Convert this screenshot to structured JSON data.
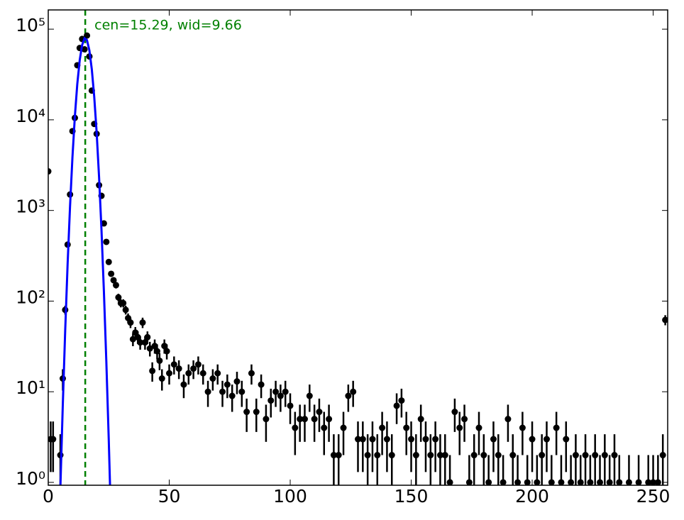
{
  "chart_data": {
    "type": "scatter",
    "log_y": true,
    "xlim": [
      0,
      256
    ],
    "ylim": [
      0.93,
      163000
    ],
    "xticks": [
      0,
      50,
      100,
      150,
      200,
      250
    ],
    "yticks": [
      {
        "value": 1,
        "label": "10⁰"
      },
      {
        "value": 10,
        "label": "10¹"
      },
      {
        "value": 100,
        "label": "10²"
      },
      {
        "value": 1000,
        "label": "10³"
      },
      {
        "value": 10000,
        "label": "10⁴"
      },
      {
        "value": 100000,
        "label": "10⁵"
      }
    ],
    "annotation": "cen=15.29, wid=9.66",
    "vline": 15.29,
    "vline_color": "#008000",
    "series": [
      {
        "color": "#000000",
        "x": [
          0,
          1,
          2,
          5,
          6,
          7,
          8,
          9,
          10,
          11,
          12,
          13,
          14,
          15,
          16,
          17,
          18,
          19,
          20,
          21,
          22,
          23,
          24,
          25,
          26,
          27,
          28,
          29,
          30,
          31,
          32,
          33,
          34,
          35,
          36,
          37,
          38,
          39,
          40,
          41,
          42,
          43,
          44,
          45,
          46,
          47,
          48,
          49,
          50,
          52,
          54,
          56,
          58,
          60,
          62,
          64,
          66,
          68,
          70,
          72,
          74,
          76,
          78,
          80,
          82,
          84,
          86,
          88,
          90,
          92,
          94,
          96,
          98,
          100,
          102,
          104,
          106,
          108,
          110,
          112,
          114,
          116,
          118,
          120,
          122,
          124,
          126,
          128,
          130,
          132,
          134,
          136,
          138,
          140,
          142,
          144,
          146,
          148,
          150,
          152,
          154,
          156,
          158,
          160,
          162,
          164,
          166,
          168,
          170,
          172,
          174,
          176,
          178,
          180,
          182,
          184,
          186,
          188,
          190,
          192,
          194,
          196,
          198,
          200,
          202,
          204,
          206,
          208,
          210,
          212,
          214,
          216,
          218,
          220,
          222,
          224,
          226,
          228,
          230,
          232,
          234,
          236,
          240,
          244,
          248,
          250,
          252,
          254,
          255
        ],
        "values": [
          2700,
          3,
          3,
          2,
          14,
          80,
          420,
          1500,
          7500,
          10500,
          40000,
          62000,
          78000,
          60000,
          85000,
          50000,
          21000,
          9000,
          7000,
          1900,
          1450,
          720,
          450,
          270,
          200,
          170,
          150,
          110,
          95,
          95,
          80,
          65,
          58,
          38,
          45,
          40,
          35,
          58,
          35,
          40,
          30,
          17,
          32,
          28,
          22,
          14,
          32,
          28,
          16,
          20,
          18,
          12,
          16,
          18,
          20,
          16,
          10,
          14,
          16,
          10,
          12,
          9,
          13,
          10,
          6,
          16,
          6,
          12,
          5,
          8,
          10,
          9,
          10,
          7,
          4,
          5,
          5,
          9,
          5,
          6,
          4,
          5,
          2,
          2,
          4,
          9,
          10,
          3,
          3,
          2,
          3,
          2,
          4,
          3,
          2,
          7,
          8,
          4,
          3,
          2,
          5,
          3,
          2,
          3,
          2,
          2,
          1,
          6,
          4,
          5,
          1,
          2,
          4,
          2,
          1,
          3,
          2,
          1,
          5,
          2,
          1,
          4,
          1,
          3,
          1,
          2,
          3,
          1,
          4,
          1,
          3,
          1,
          2,
          1,
          2,
          1,
          2,
          1,
          2,
          1,
          2,
          1,
          1,
          1,
          1,
          1,
          1,
          2,
          62
        ],
        "errors": [
          52,
          1.7,
          1.7,
          1.4,
          3.7,
          8.9,
          20.5,
          38.7,
          86.6,
          102.5,
          200,
          249,
          279,
          245,
          292,
          224,
          145,
          95,
          84,
          43.6,
          38.1,
          26.8,
          21.2,
          16.4,
          14.1,
          13,
          12.2,
          10.5,
          9.7,
          9.7,
          8.9,
          8.1,
          7.6,
          6.2,
          6.7,
          6.3,
          5.9,
          7.6,
          5.9,
          6.3,
          5.5,
          4.1,
          5.7,
          5.3,
          4.7,
          3.7,
          5.7,
          5.3,
          4,
          4.5,
          4.2,
          3.5,
          4,
          4.2,
          4.5,
          4,
          3.2,
          3.7,
          4,
          3.2,
          3.5,
          3,
          3.6,
          3.2,
          2.4,
          4,
          2.4,
          3.5,
          2.2,
          2.8,
          3.2,
          3,
          3.2,
          2.6,
          2,
          2.2,
          2.2,
          3,
          2.2,
          2.4,
          2,
          2.2,
          1.4,
          1.4,
          2,
          3,
          3.2,
          1.7,
          1.7,
          1.4,
          1.7,
          1.4,
          2,
          1.7,
          1.4,
          2.6,
          2.8,
          2,
          1.7,
          1.4,
          2.2,
          1.7,
          1.4,
          1.7,
          1.4,
          1.4,
          1,
          2.4,
          2,
          2.2,
          1,
          1.4,
          2,
          1.4,
          1,
          1.7,
          1.4,
          1,
          2.2,
          1.4,
          1,
          2,
          1,
          1.7,
          1,
          1.4,
          1.7,
          1,
          2,
          1,
          1.7,
          1,
          1.4,
          1,
          1.4,
          1,
          1.4,
          1,
          1.4,
          1,
          1.4,
          1,
          1,
          1,
          1,
          1,
          1,
          1.4,
          7.9
        ]
      },
      {
        "type": "line",
        "color": "#0000ff",
        "x": [
          5,
          6,
          7,
          8,
          9,
          10,
          11,
          12,
          13,
          14,
          15,
          16,
          17,
          18,
          19,
          20,
          21,
          22,
          23,
          24,
          25,
          26
        ],
        "values": [
          0.85,
          7,
          47,
          255,
          1100,
          3860,
          10900,
          24800,
          45400,
          66800,
          79300,
          75800,
          58300,
          36100,
          18000,
          7260,
          2340,
          612,
          128,
          21.7,
          3,
          0.33
        ]
      }
    ]
  }
}
